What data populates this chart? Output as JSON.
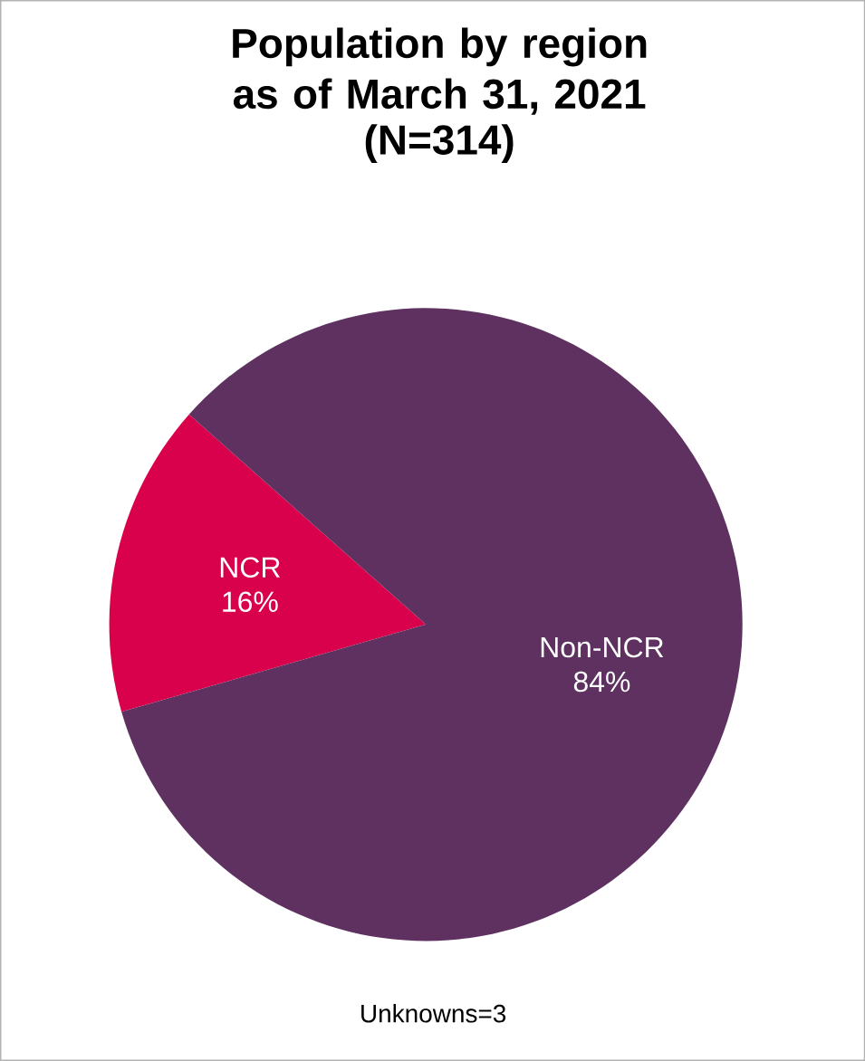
{
  "chart_data": {
    "type": "pie",
    "title": "Population by region as of March 31, 2021",
    "subtitle": "(N=314)",
    "categories": [
      "NCR",
      "Non-NCR"
    ],
    "values": [
      16,
      84
    ],
    "value_labels": [
      "16%",
      "84%"
    ],
    "colors": [
      "#d9004c",
      "#5e3160"
    ],
    "annotations": [
      "Unknowns=3"
    ]
  }
}
